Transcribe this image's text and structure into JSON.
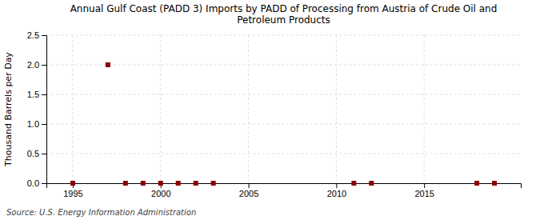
{
  "chart_data": {
    "type": "scatter",
    "title": "Annual Gulf Coast (PADD 3) Imports by PADD of Processing from Austria of Crude Oil and\nPetroleum Products",
    "ylabel": "Thousand Barrels per Day",
    "annotations": [
      "Source: U.S. Energy Information Administration"
    ],
    "x": [
      1995,
      1997,
      1998,
      1999,
      2000,
      2001,
      2002,
      2003,
      2011,
      2012,
      2018,
      2019
    ],
    "values": [
      0.0,
      2.0,
      0.0,
      0.0,
      0.0,
      0.0,
      0.0,
      0.0,
      0.0,
      0.0,
      0.0,
      0.0
    ],
    "color": "#8b0000",
    "marker": "square",
    "xlim": [
      1993.5,
      2020.5
    ],
    "ylim": [
      0.0,
      2.5
    ],
    "xticks": [
      1995,
      2000,
      2005,
      2010,
      2015
    ],
    "yticks": [
      {
        "value": 0.0,
        "label": "0.0"
      },
      0.5,
      {
        "value": 1.0,
        "label": "1.0"
      },
      1.5,
      {
        "value": 2.0,
        "label": "2.0"
      },
      2.5
    ],
    "grid": true
  }
}
